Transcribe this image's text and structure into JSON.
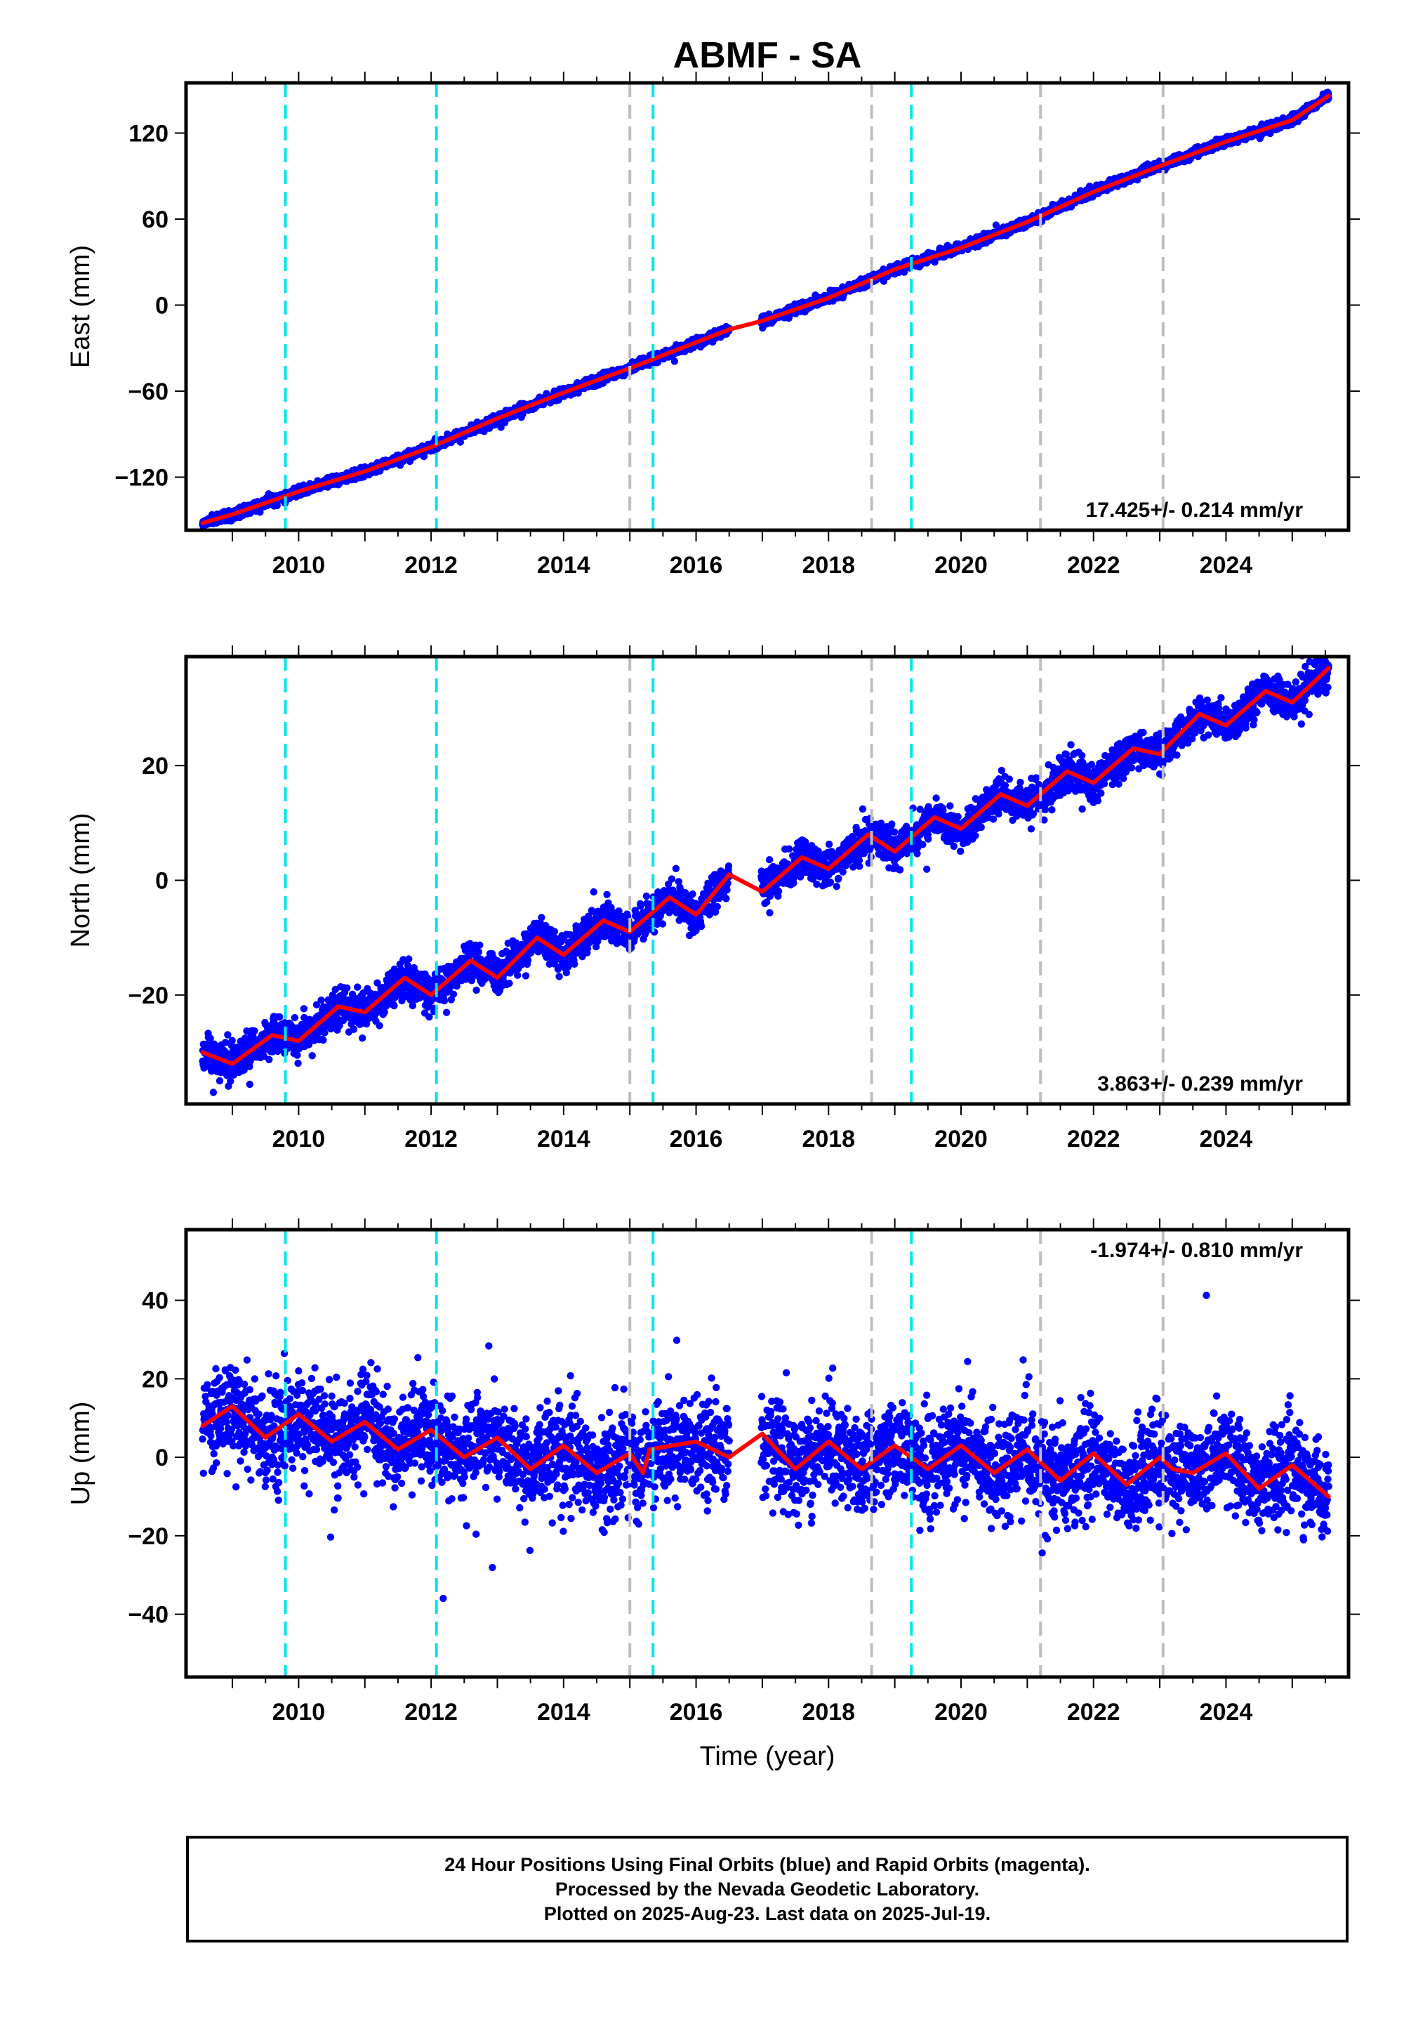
{
  "figure": {
    "title": "ABMF - SA",
    "xlabel": "Time (year)",
    "caption": [
      "24 Hour Positions Using Final Orbits (blue) and Rapid Orbits (magenta).",
      "Processed by the Nevada Geodetic Laboratory.",
      "Plotted on 2025-Aug-23. Last data on 2025-Jul-19."
    ]
  },
  "colors": {
    "data_points": "#0000ff",
    "model_fit": "#ff0000",
    "antenna_change": "#00e5ee",
    "equipment_change": "#bebebe",
    "frame": "#000000"
  },
  "chart_data": [
    {
      "type": "scatter",
      "panel": "east",
      "ylabel": "East (mm)",
      "rate_label": "17.425+/- 0.214 mm/yr",
      "xlim": [
        2008.3,
        2025.85
      ],
      "ylim": [
        -157,
        155
      ],
      "xticks": [
        2010,
        2012,
        2014,
        2016,
        2018,
        2020,
        2022,
        2024
      ],
      "yticks": [
        -120,
        -60,
        0,
        60,
        120
      ],
      "data_range": [
        2008.55,
        2025.55
      ],
      "data_gap": [
        2016.5,
        2016.98
      ],
      "start_value": -153,
      "rate_mm_yr": 17.425,
      "annual_amplitude": 1.2,
      "scatter_sd": 1.6,
      "model": [
        [
          2008.55,
          -152
        ],
        [
          2009.0,
          -146
        ],
        [
          2010.0,
          -130
        ],
        [
          2011.0,
          -116
        ],
        [
          2012.0,
          -99
        ],
        [
          2013.0,
          -79
        ],
        [
          2014.0,
          -61
        ],
        [
          2015.0,
          -44
        ],
        [
          2016.0,
          -26
        ],
        [
          2016.5,
          -17
        ],
        [
          2017.0,
          -11
        ],
        [
          2018.0,
          5
        ],
        [
          2019.0,
          25
        ],
        [
          2020.0,
          40
        ],
        [
          2021.0,
          58
        ],
        [
          2022.0,
          79
        ],
        [
          2023.0,
          97
        ],
        [
          2024.0,
          114
        ],
        [
          2025.0,
          129
        ],
        [
          2025.55,
          146
        ]
      ]
    },
    {
      "type": "scatter",
      "panel": "north",
      "ylabel": "North (mm)",
      "rate_label": "3.863+/- 0.239 mm/yr",
      "xlim": [
        2008.3,
        2025.85
      ],
      "ylim": [
        -39,
        39
      ],
      "xticks": [
        2010,
        2012,
        2014,
        2016,
        2018,
        2020,
        2022,
        2024
      ],
      "yticks": [
        -20,
        0,
        20
      ],
      "data_range": [
        2008.55,
        2025.55
      ],
      "data_gap": [
        2016.5,
        2016.98
      ],
      "start_value": -32.5,
      "rate_mm_yr": 3.863,
      "annual_amplitude": 2.5,
      "scatter_sd": 1.6,
      "model": [
        [
          2008.55,
          -30
        ],
        [
          2009.0,
          -32
        ],
        [
          2009.6,
          -27
        ],
        [
          2010.0,
          -28
        ],
        [
          2010.6,
          -22
        ],
        [
          2011.0,
          -23
        ],
        [
          2011.6,
          -17
        ],
        [
          2012.0,
          -20
        ],
        [
          2012.6,
          -14
        ],
        [
          2013.0,
          -17
        ],
        [
          2013.6,
          -10
        ],
        [
          2014.0,
          -13
        ],
        [
          2014.6,
          -7
        ],
        [
          2015.0,
          -9
        ],
        [
          2015.6,
          -3
        ],
        [
          2016.0,
          -6
        ],
        [
          2016.5,
          1
        ],
        [
          2017.0,
          -2
        ],
        [
          2017.6,
          4
        ],
        [
          2018.0,
          2
        ],
        [
          2018.6,
          8
        ],
        [
          2019.0,
          5
        ],
        [
          2019.6,
          11
        ],
        [
          2020.0,
          9
        ],
        [
          2020.6,
          15
        ],
        [
          2021.0,
          13
        ],
        [
          2021.6,
          19
        ],
        [
          2022.0,
          17
        ],
        [
          2022.6,
          23
        ],
        [
          2023.0,
          22
        ],
        [
          2023.6,
          29
        ],
        [
          2024.0,
          27
        ],
        [
          2024.6,
          33
        ],
        [
          2025.0,
          31
        ],
        [
          2025.55,
          37
        ]
      ]
    },
    {
      "type": "scatter",
      "panel": "up",
      "ylabel": "Up (mm)",
      "rate_label": "-1.974+/- 0.810 mm/yr",
      "xlim": [
        2008.3,
        2025.85
      ],
      "ylim": [
        -56,
        58
      ],
      "xticks": [
        2010,
        2012,
        2014,
        2016,
        2018,
        2020,
        2022,
        2024
      ],
      "yticks": [
        -40,
        -20,
        0,
        20,
        40
      ],
      "data_range": [
        2008.55,
        2025.55
      ],
      "data_gap": [
        2016.5,
        2016.98
      ],
      "start_value": 10,
      "rate_mm_yr": -1.974,
      "annual_amplitude": 4.5,
      "scatter_sd": 6.2,
      "model": [
        [
          2008.55,
          8
        ],
        [
          2009.0,
          13
        ],
        [
          2009.5,
          5
        ],
        [
          2010.0,
          11
        ],
        [
          2010.5,
          4
        ],
        [
          2011.0,
          9
        ],
        [
          2011.5,
          2
        ],
        [
          2012.0,
          7
        ],
        [
          2012.5,
          0
        ],
        [
          2013.0,
          5
        ],
        [
          2013.5,
          -3
        ],
        [
          2014.0,
          3
        ],
        [
          2014.5,
          -4
        ],
        [
          2015.0,
          1
        ],
        [
          2015.2,
          -4
        ],
        [
          2015.3,
          2
        ],
        [
          2016.0,
          4
        ],
        [
          2016.5,
          0
        ],
        [
          2017.0,
          6
        ],
        [
          2017.5,
          -3
        ],
        [
          2018.0,
          4
        ],
        [
          2018.5,
          -3
        ],
        [
          2019.0,
          3
        ],
        [
          2019.5,
          -3
        ],
        [
          2020.0,
          3
        ],
        [
          2020.5,
          -4
        ],
        [
          2021.0,
          2
        ],
        [
          2021.5,
          -6
        ],
        [
          2022.0,
          1
        ],
        [
          2022.5,
          -7
        ],
        [
          2023.0,
          0
        ],
        [
          2023.2,
          -3
        ],
        [
          2023.5,
          -4
        ],
        [
          2024.0,
          1
        ],
        [
          2024.5,
          -8
        ],
        [
          2025.0,
          -2
        ],
        [
          2025.55,
          -10
        ]
      ]
    }
  ],
  "antenna_changes": [
    2009.8,
    2012.08,
    2015.35,
    2019.25
  ],
  "equipment_changes": [
    2015.0,
    2018.65,
    2021.2,
    2023.05
  ]
}
